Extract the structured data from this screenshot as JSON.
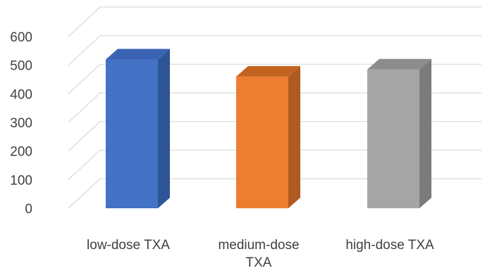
{
  "chart_data": {
    "type": "bar",
    "style": "3d-column",
    "categories": [
      "low-dose TXA",
      "medium-dose TXA",
      "high-dose TXA"
    ],
    "category_lines": [
      [
        "low-dose TXA"
      ],
      [
        "medium-dose",
        "TXA"
      ],
      [
        "high-dose TXA"
      ]
    ],
    "series": [
      {
        "values": [
          520,
          460,
          485
        ]
      }
    ],
    "bar_colors": {
      "front": [
        "#4472c4",
        "#ed7d31",
        "#a5a5a5"
      ],
      "side": [
        "#2f5597",
        "#ae5a21",
        "#7b7b7b"
      ],
      "top": [
        "#3a64b3",
        "#c4631f",
        "#8c8c8c"
      ]
    },
    "yticks": [
      0,
      100,
      200,
      300,
      400,
      500,
      600
    ],
    "ylim": [
      0,
      600
    ],
    "grid": true,
    "legend": "none"
  }
}
